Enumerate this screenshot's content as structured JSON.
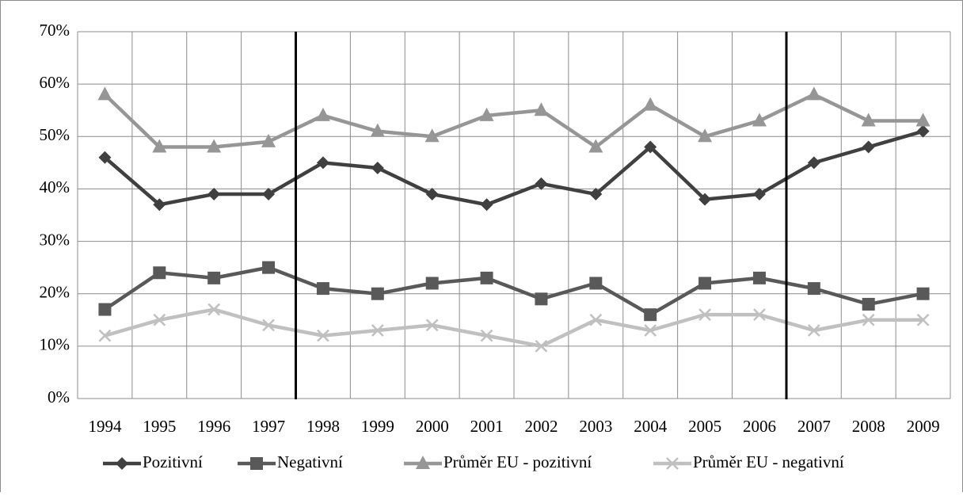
{
  "chart_data": {
    "type": "line",
    "categories": [
      "1994",
      "1995",
      "1996",
      "1997",
      "1998",
      "1999",
      "2000",
      "2001",
      "2002",
      "2003",
      "2004",
      "2005",
      "2006",
      "2007",
      "2008",
      "2009"
    ],
    "series": [
      {
        "name": "Pozitivní",
        "color": "#404040",
        "marker": "diamond",
        "values": [
          46,
          37,
          39,
          39,
          45,
          44,
          39,
          37,
          41,
          39,
          48,
          38,
          39,
          45,
          48,
          51
        ]
      },
      {
        "name": "Negativní",
        "color": "#595959",
        "marker": "square",
        "values": [
          17,
          24,
          23,
          25,
          21,
          20,
          22,
          23,
          19,
          22,
          16,
          22,
          23,
          21,
          18,
          20
        ]
      },
      {
        "name": "Průměr EU - pozitivní",
        "color": "#969696",
        "marker": "triangle",
        "values": [
          58,
          48,
          48,
          49,
          54,
          51,
          50,
          54,
          55,
          48,
          56,
          50,
          53,
          58,
          53,
          53
        ]
      },
      {
        "name": "Průměr EU - negativní",
        "color": "#c0c0c0",
        "marker": "x",
        "values": [
          12,
          15,
          17,
          14,
          12,
          13,
          14,
          12,
          10,
          15,
          13,
          16,
          16,
          13,
          15,
          15
        ]
      }
    ],
    "ylim": [
      0,
      70
    ],
    "yticks": [
      {
        "value": 0,
        "label": "0%"
      },
      {
        "value": 10,
        "label": "10%"
      },
      {
        "value": 20,
        "label": "20%"
      },
      {
        "value": 30,
        "label": "30%"
      },
      {
        "value": 40,
        "label": "40%"
      },
      {
        "value": 50,
        "label": "50%"
      },
      {
        "value": 60,
        "label": "60%"
      },
      {
        "value": 70,
        "label": "70%"
      }
    ],
    "grid": true,
    "legend": "bottom"
  }
}
